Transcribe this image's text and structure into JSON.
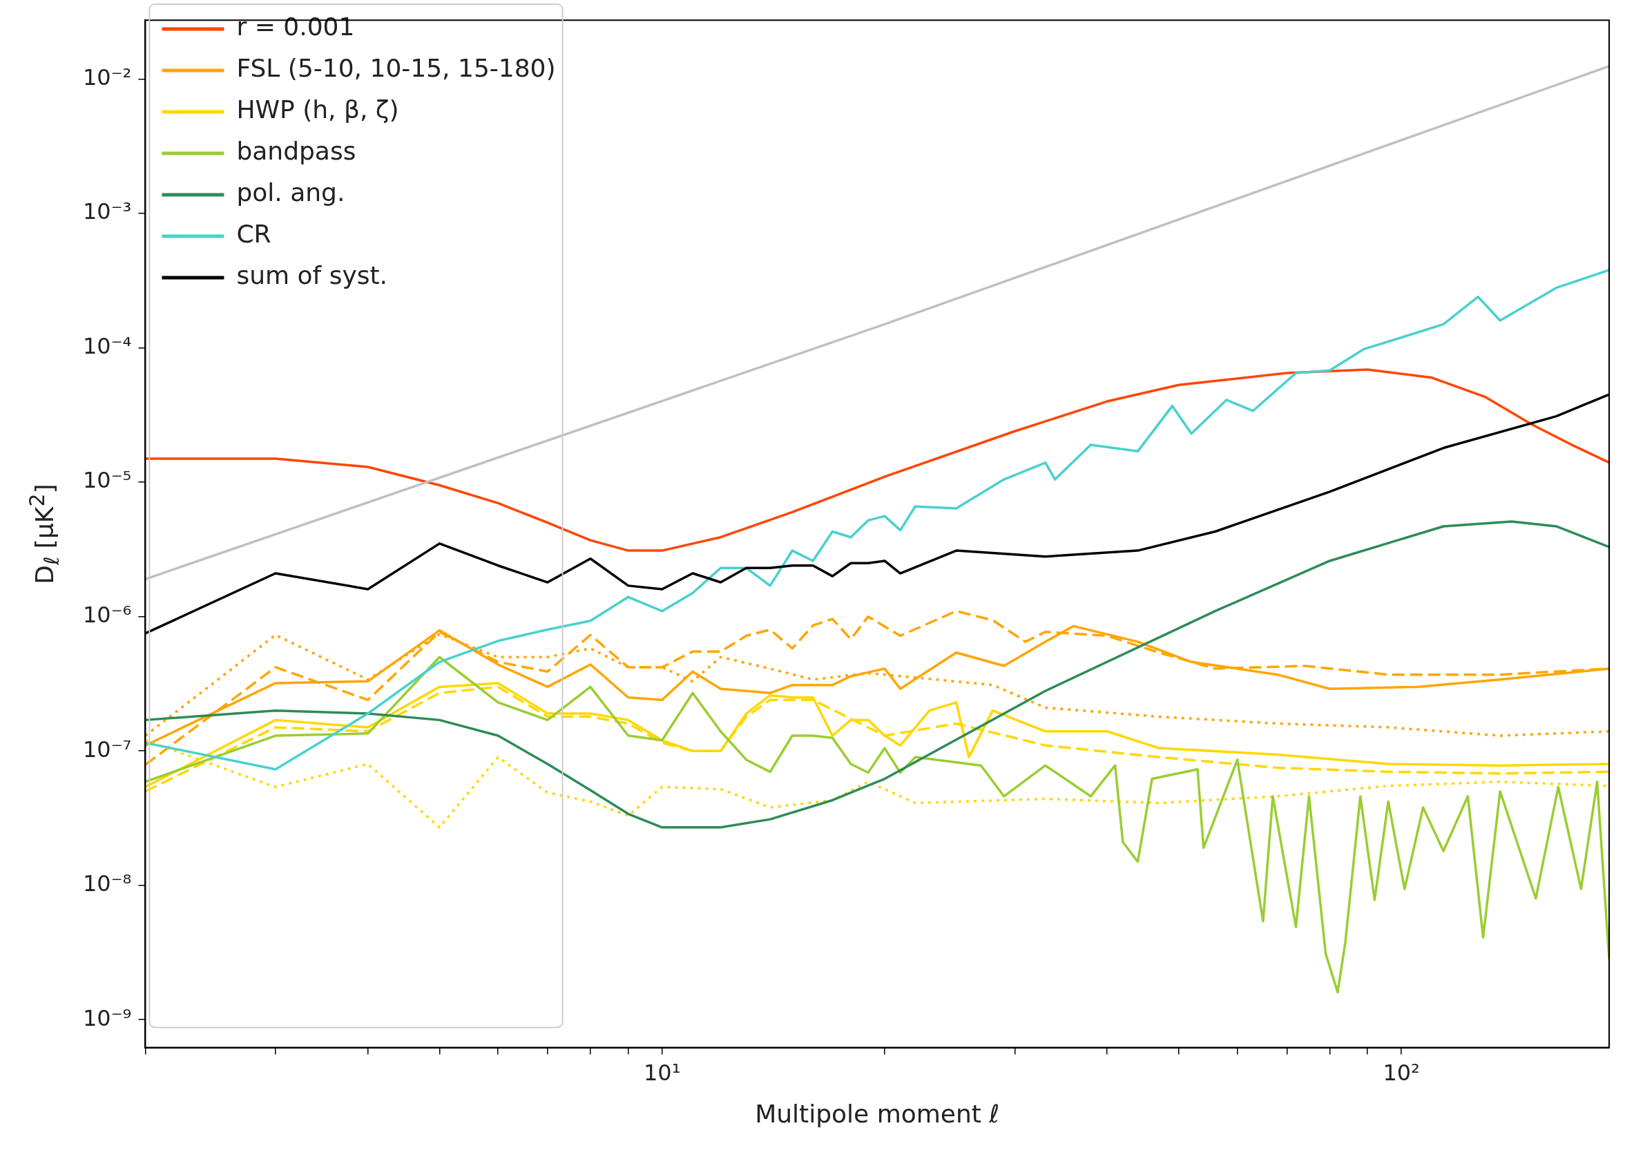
{
  "chart_data": {
    "type": "line",
    "xlabel": "Multipole moment ℓ",
    "ylabel": "D$_{ℓ}$ [μK$^{2}$]",
    "log": "xy",
    "grid": false,
    "legend": "top left",
    "xlim": [
      2,
      191
    ],
    "ylim": [
      6.2e-10,
      0.0275
    ],
    "xticks": [
      {
        "value": 2,
        "label": null
      },
      {
        "value": 3,
        "label": null
      },
      {
        "value": 4,
        "label": null
      },
      {
        "value": 5,
        "label": null
      },
      {
        "value": 6,
        "label": null
      },
      {
        "value": 7,
        "label": null
      },
      {
        "value": 8,
        "label": null
      },
      {
        "value": 9,
        "label": null
      },
      {
        "value": 10,
        "label": "10¹"
      },
      {
        "value": 20,
        "label": null
      },
      {
        "value": 30,
        "label": null
      },
      {
        "value": 40,
        "label": null
      },
      {
        "value": 50,
        "label": null
      },
      {
        "value": 60,
        "label": null
      },
      {
        "value": 70,
        "label": null
      },
      {
        "value": 80,
        "label": null
      },
      {
        "value": 90,
        "label": null
      },
      {
        "value": 100,
        "label": "10²"
      }
    ],
    "yticks": [
      {
        "value": 1e-09,
        "label": "10⁻⁹"
      },
      {
        "value": 1e-08,
        "label": "10⁻⁸"
      },
      {
        "value": 1e-07,
        "label": "10⁻⁷"
      },
      {
        "value": 1e-06,
        "label": "10⁻⁶"
      },
      {
        "value": 1e-05,
        "label": "10⁻⁵"
      },
      {
        "value": 0.0001,
        "label": "10⁻⁴"
      },
      {
        "value": 0.001,
        "label": "10⁻³"
      },
      {
        "value": 0.01,
        "label": "10⁻²"
      }
    ],
    "series": [
      {
        "name": "r = 0.001",
        "color": "#ff4500",
        "x": [
          2,
          3,
          4,
          5,
          6,
          7,
          8,
          9,
          10,
          12,
          15,
          20,
          30,
          40,
          50,
          70,
          90,
          110,
          130,
          150,
          170,
          191
        ],
        "values": [
          1.5e-05,
          1.5e-05,
          1.3e-05,
          9.5e-06,
          7e-06,
          5e-06,
          3.7e-06,
          3.1e-06,
          3.1e-06,
          3.9e-06,
          6e-06,
          1.1e-05,
          2.4e-05,
          4e-05,
          5.3e-05,
          6.5e-05,
          6.9e-05,
          6e-05,
          4.3e-05,
          2.7e-05,
          1.9e-05,
          1.4e-05
        ]
      },
      {
        "name": "FSL (5-10, 10-15, 15-180)",
        "color": "#ffa500",
        "line_style": "solid",
        "x": [
          2,
          3,
          4,
          5,
          6,
          7,
          8,
          9,
          10,
          11,
          12,
          14,
          15,
          17,
          18,
          20,
          21,
          25,
          29,
          33,
          36,
          44,
          52,
          68,
          80,
          105,
          136,
          191
        ],
        "values": [
          1.1e-07,
          3.2e-07,
          3.3e-07,
          7.9e-07,
          4.4e-07,
          3e-07,
          4.4e-07,
          2.5e-07,
          2.4e-07,
          3.9e-07,
          2.9e-07,
          2.7e-07,
          3.1e-07,
          3.1e-07,
          3.6e-07,
          4.1e-07,
          2.9e-07,
          5.4e-07,
          4.3e-07,
          6.5e-07,
          8.5e-07,
          6.5e-07,
          4.6e-07,
          3.7e-07,
          2.9e-07,
          3e-07,
          3.4e-07,
          4.1e-07
        ]
      },
      {
        "color": "#ffa500",
        "line_style": "dashed",
        "x": [
          2,
          3,
          4,
          5,
          6,
          7,
          8,
          9,
          10,
          11,
          12,
          13,
          14,
          15,
          16,
          17,
          18,
          19,
          21,
          25,
          28,
          31,
          33,
          40,
          47,
          56,
          74,
          96,
          136,
          191
        ],
        "values": [
          7.9e-08,
          4.2e-07,
          2.4e-07,
          7.7e-07,
          4.6e-07,
          3.9e-07,
          7.3e-07,
          4.2e-07,
          4.2e-07,
          5.5e-07,
          5.5e-07,
          7.2e-07,
          8e-07,
          5.8e-07,
          8.6e-07,
          9.6e-07,
          6.8e-07,
          1e-06,
          7.2e-07,
          1.1e-06,
          9.4e-07,
          6.5e-07,
          7.7e-07,
          7.2e-07,
          5.4e-07,
          4.1e-07,
          4.3e-07,
          3.7e-07,
          3.7e-07,
          4.1e-07
        ]
      },
      {
        "color": "#ffa500",
        "line_style": "dotted",
        "x": [
          2,
          3,
          4,
          5,
          6,
          7,
          8,
          9,
          10,
          11,
          12,
          14,
          16,
          19,
          28,
          33,
          47,
          68,
          96,
          136,
          191
        ],
        "values": [
          1.3e-07,
          7.3e-07,
          3.4e-07,
          7.4e-07,
          5e-07,
          5e-07,
          5.8e-07,
          4.2e-07,
          4.2e-07,
          3.3e-07,
          5e-07,
          4.1e-07,
          3.4e-07,
          3.8e-07,
          3.1e-07,
          2.1e-07,
          1.8e-07,
          1.6e-07,
          1.5e-07,
          1.3e-07,
          1.4e-07
        ]
      },
      {
        "name": "HWP (h, β, ζ)",
        "color": "#ffd700",
        "line_style": "solid",
        "x": [
          2,
          3,
          4,
          5,
          6,
          7,
          8,
          9,
          10,
          11,
          12,
          13,
          14,
          15,
          16,
          17,
          18,
          19,
          20,
          21,
          23,
          25,
          26,
          28,
          33,
          40,
          47,
          68,
          96,
          136,
          191
        ],
        "values": [
          5.4e-08,
          1.7e-07,
          1.5e-07,
          3e-07,
          3.2e-07,
          1.9e-07,
          1.9e-07,
          1.7e-07,
          1.2e-07,
          1e-07,
          1e-07,
          1.9e-07,
          2.6e-07,
          2.5e-07,
          2.5e-07,
          1.3e-07,
          1.7e-07,
          1.7e-07,
          1.3e-07,
          1.1e-07,
          2e-07,
          2.3e-07,
          9e-08,
          2e-07,
          1.4e-07,
          1.4e-07,
          1.05e-07,
          9.4e-08,
          8e-08,
          7.8e-08,
          8e-08
        ]
      },
      {
        "color": "#ffd700",
        "line_style": "dashed",
        "x": [
          2,
          3,
          4,
          5,
          6,
          7,
          8,
          9,
          10,
          11,
          12,
          13,
          14,
          16,
          20,
          25,
          33,
          47,
          68,
          96,
          136,
          191
        ],
        "values": [
          5e-08,
          1.5e-07,
          1.4e-07,
          2.7e-07,
          3e-07,
          1.8e-07,
          1.8e-07,
          1.6e-07,
          1.15e-07,
          1e-07,
          1e-07,
          1.8e-07,
          2.4e-07,
          2.4e-07,
          1.3e-07,
          1.6e-07,
          1.1e-07,
          9e-08,
          7.5e-08,
          7e-08,
          6.8e-08,
          7e-08
        ]
      },
      {
        "color": "#ffd700",
        "line_style": "dotted",
        "x": [
          2,
          3,
          4,
          5,
          6,
          7,
          8,
          9,
          10,
          12,
          14,
          17,
          19,
          22,
          33,
          47,
          68,
          96,
          136,
          191
        ],
        "values": [
          1.2e-07,
          5.4e-08,
          8e-08,
          2.7e-08,
          9e-08,
          4.9e-08,
          4.2e-08,
          3.3e-08,
          5.4e-08,
          5.2e-08,
          3.8e-08,
          4.3e-08,
          5.9e-08,
          4.1e-08,
          4.4e-08,
          4.1e-08,
          4.6e-08,
          5.5e-08,
          5.9e-08,
          5.5e-08
        ]
      },
      {
        "name": "bandpass",
        "color": "#9acd32",
        "x": [
          2,
          3,
          4,
          5,
          6,
          7,
          8,
          9,
          10,
          11,
          12,
          13,
          14,
          15,
          16,
          17,
          18,
          19,
          20,
          21,
          22,
          27,
          29,
          33,
          38,
          41,
          42,
          44,
          46,
          53,
          54,
          60,
          65,
          67,
          72,
          75,
          79,
          82,
          84,
          88,
          92,
          96,
          101,
          107,
          114,
          123,
          129,
          136,
          152,
          163,
          175,
          184,
          191
        ],
        "values": [
          5.9e-08,
          1.3e-07,
          1.35e-07,
          5e-07,
          2.3e-07,
          1.7e-07,
          3e-07,
          1.3e-07,
          1.2e-07,
          2.7e-07,
          1.4e-07,
          8.6e-08,
          7e-08,
          1.3e-07,
          1.3e-07,
          1.25e-07,
          8e-08,
          6.9e-08,
          1.05e-07,
          6.9e-08,
          9e-08,
          7.8e-08,
          4.6e-08,
          7.8e-08,
          4.6e-08,
          7.8e-08,
          2.1e-08,
          1.5e-08,
          6.2e-08,
          7.3e-08,
          1.9e-08,
          8.6e-08,
          5.4e-09,
          4.6e-08,
          4.9e-09,
          4.6e-08,
          3.1e-09,
          1.6e-09,
          3.8e-09,
          4.6e-08,
          7.8e-09,
          4.2e-08,
          9.4e-09,
          3.8e-08,
          1.8e-08,
          4.6e-08,
          4.1e-09,
          5e-08,
          8e-09,
          5.4e-08,
          9.4e-09,
          5.9e-08,
          2.8e-09
        ]
      },
      {
        "name": "pol. ang.",
        "color": "#2e8b57",
        "x": [
          2,
          3,
          4,
          5,
          6,
          7,
          8,
          9,
          10,
          12,
          14,
          17,
          20,
          33,
          56,
          80,
          114,
          141,
          162,
          191
        ],
        "values": [
          1.7e-07,
          2e-07,
          1.9e-07,
          1.7e-07,
          1.3e-07,
          8e-08,
          5.1e-08,
          3.4e-08,
          2.7e-08,
          2.7e-08,
          3.1e-08,
          4.3e-08,
          6.2e-08,
          2.8e-07,
          1.1e-06,
          2.6e-06,
          4.7e-06,
          5.1e-06,
          4.7e-06,
          3.3e-06
        ]
      },
      {
        "name": "CR",
        "color": "#48d1cc",
        "x": [
          2,
          3,
          4,
          5,
          6,
          7,
          8,
          9,
          10,
          11,
          12,
          13,
          14,
          15,
          16,
          17,
          18,
          19,
          20,
          21,
          22,
          25,
          29,
          33,
          34,
          38,
          44,
          49,
          52,
          58,
          63,
          72,
          80,
          89,
          105,
          114,
          127,
          136,
          162,
          191
        ],
        "values": [
          1.15e-07,
          7.3e-08,
          1.9e-07,
          4.6e-07,
          6.6e-07,
          8e-07,
          9.3e-07,
          1.4e-06,
          1.1e-06,
          1.5e-06,
          2.3e-06,
          2.3e-06,
          1.7e-06,
          3.1e-06,
          2.6e-06,
          4.3e-06,
          3.9e-06,
          5.2e-06,
          5.6e-06,
          4.4e-06,
          6.6e-06,
          6.4e-06,
          1.05e-05,
          1.4e-05,
          1.05e-05,
          1.9e-05,
          1.7e-05,
          3.7e-05,
          2.3e-05,
          4.1e-05,
          3.4e-05,
          6.5e-05,
          6.8e-05,
          9.8e-05,
          0.00013,
          0.00015,
          0.00024,
          0.00016,
          0.00028,
          0.00038
        ]
      },
      {
        "name": "sum of syst.",
        "color": "#000000",
        "x": [
          2,
          3,
          4,
          5,
          6,
          7,
          8,
          9,
          10,
          11,
          12,
          13,
          14,
          15,
          16,
          17,
          18,
          19,
          20,
          21,
          25,
          33,
          44,
          56,
          80,
          114,
          162,
          191
        ],
        "values": [
          7.5e-07,
          2.1e-06,
          1.6e-06,
          3.5e-06,
          2.4e-06,
          1.8e-06,
          2.7e-06,
          1.7e-06,
          1.6e-06,
          2.1e-06,
          1.8e-06,
          2.3e-06,
          2.3e-06,
          2.4e-06,
          2.4e-06,
          2e-06,
          2.5e-06,
          2.5e-06,
          2.6e-06,
          2.1e-06,
          3.1e-06,
          2.8e-06,
          3.1e-06,
          4.3e-06,
          8.5e-06,
          1.8e-05,
          3.1e-05,
          4.5e-05
        ]
      },
      {
        "color": "#c0c0c0",
        "x": [
          2,
          20,
          191
        ],
        "values": [
          1.9e-06,
          0.00015,
          0.0125
        ]
      }
    ]
  }
}
